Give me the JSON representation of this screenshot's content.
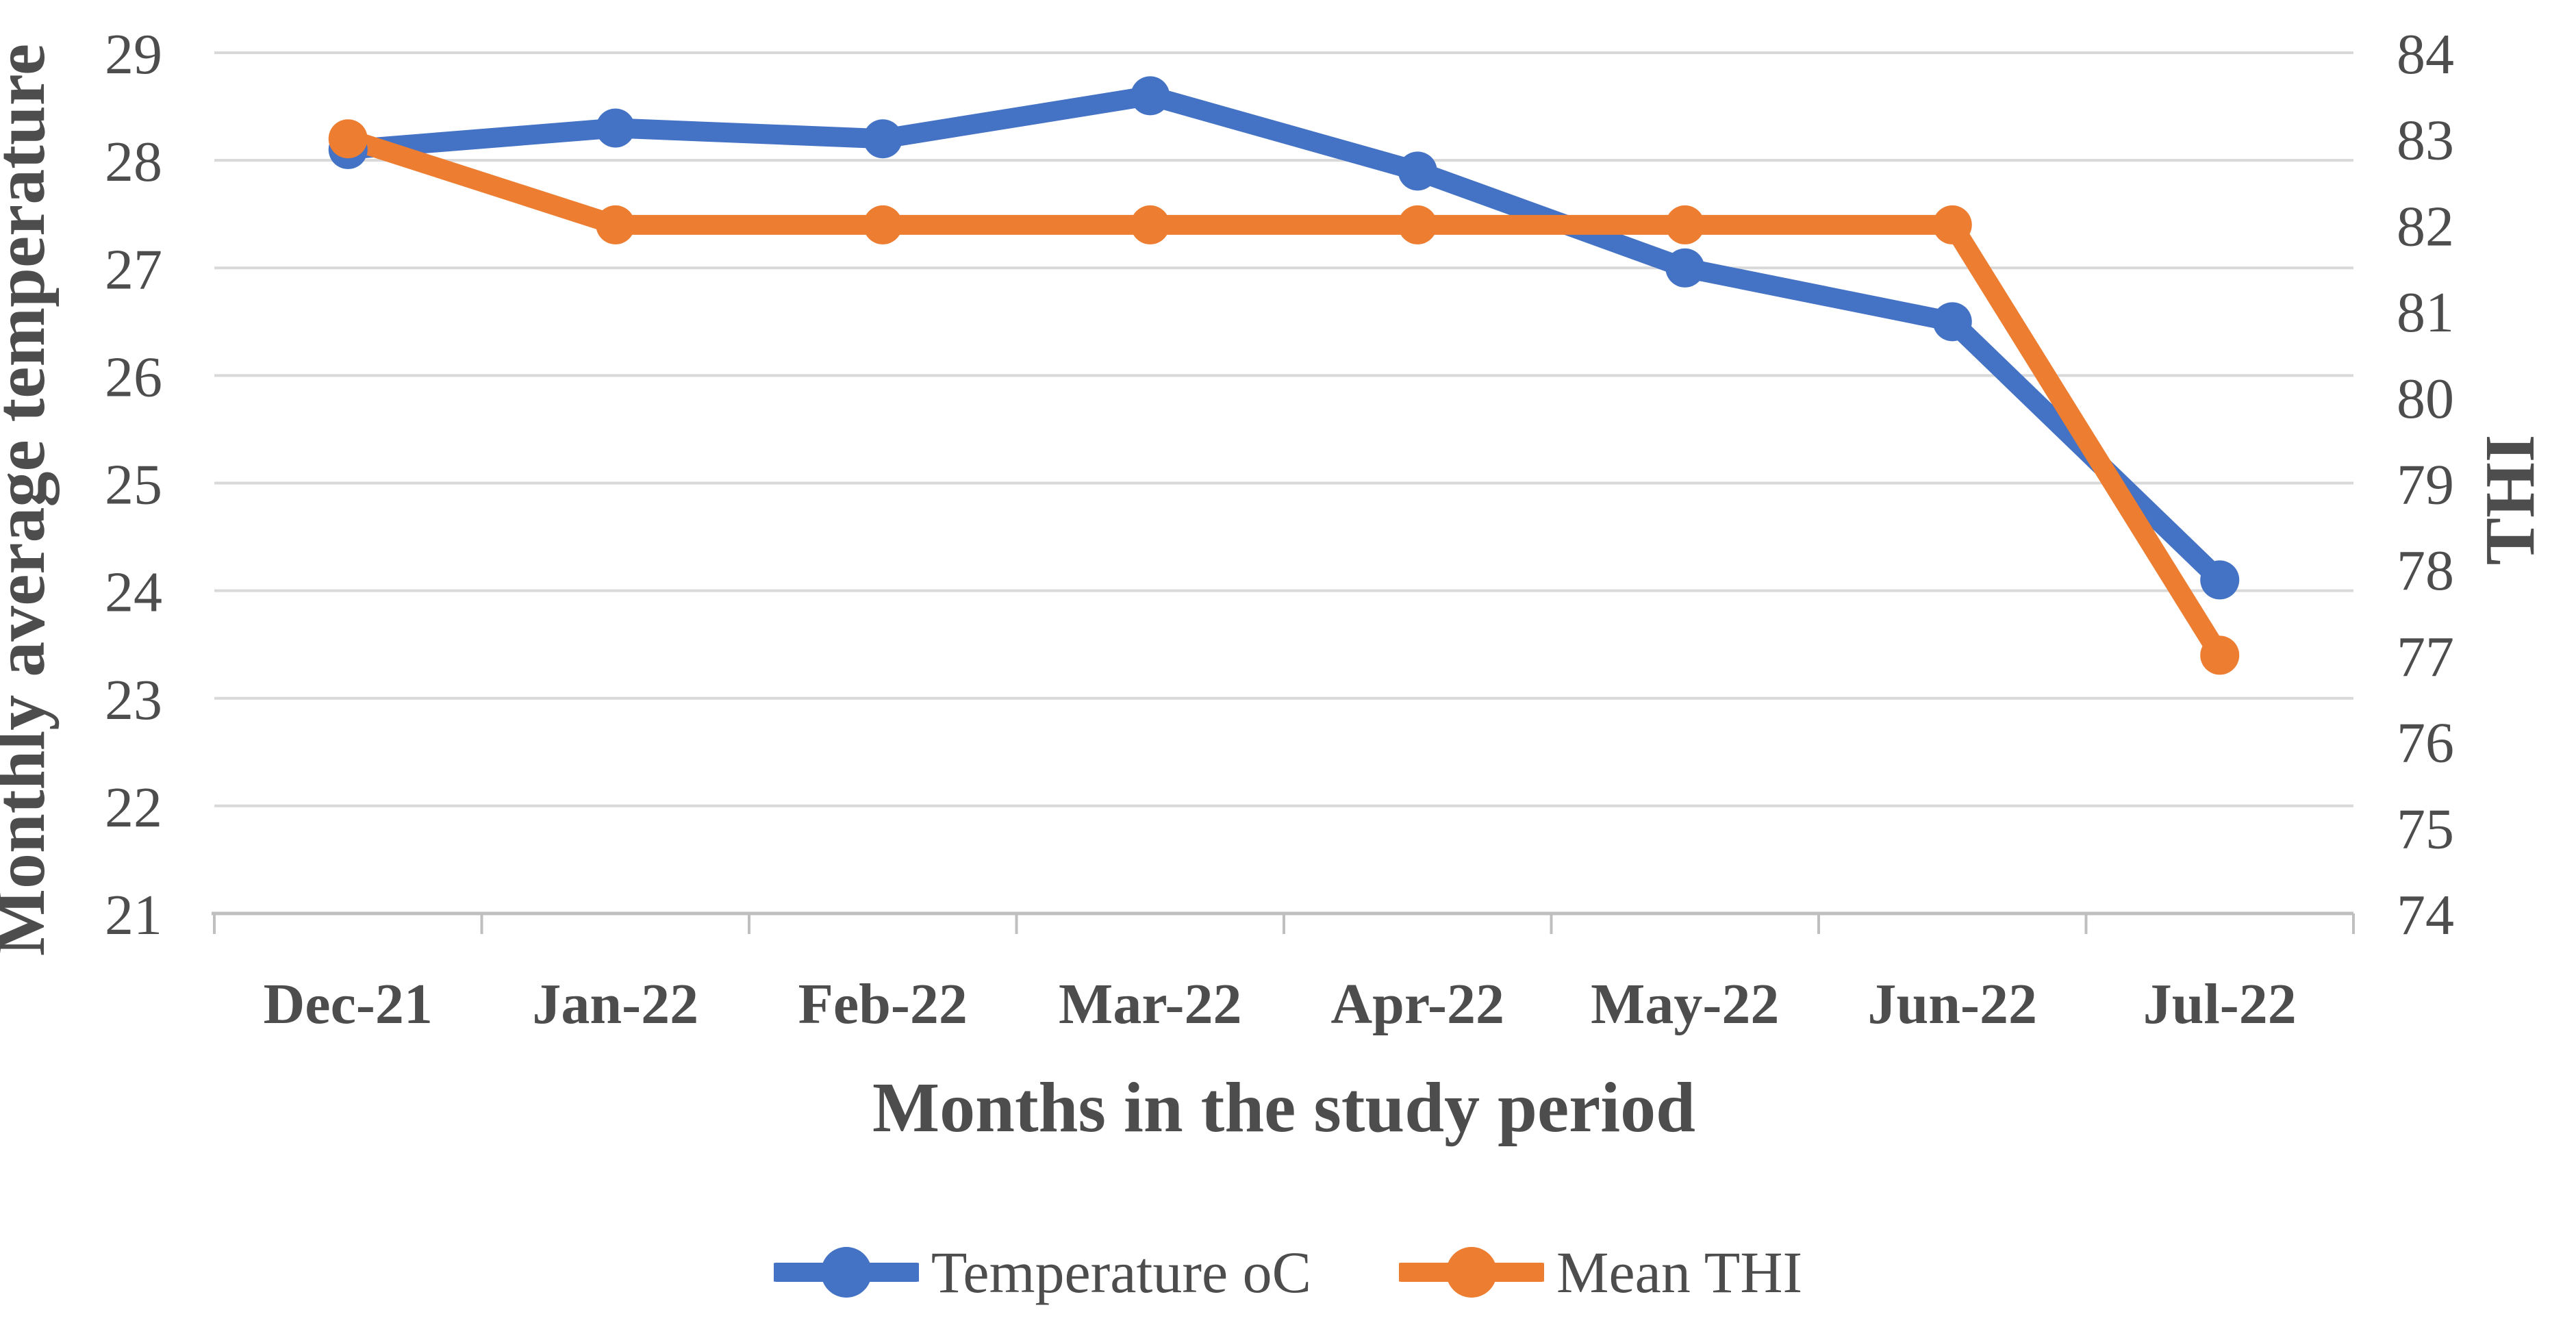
{
  "chart_data": {
    "type": "line",
    "categories": [
      "Dec-21",
      "Jan-22",
      "Feb-22",
      "Mar-22",
      "Apr-22",
      "May-22",
      "Jun-22",
      "Jul-22"
    ],
    "series": [
      {
        "name": "Temperature oC",
        "axis": "left",
        "color": "#4472C4",
        "marker": "circle",
        "values": [
          28.1,
          28.3,
          28.2,
          28.6,
          27.9,
          27.0,
          26.5,
          24.1
        ]
      },
      {
        "name": "Mean THI",
        "axis": "right",
        "color": "#ED7D31",
        "marker": "circle",
        "values": [
          83,
          82,
          82,
          82,
          82,
          82,
          82,
          77
        ]
      }
    ],
    "left_axis": {
      "title": "Monthly average temperature",
      "min": 21,
      "max": 29,
      "ticks": [
        29,
        28,
        27,
        26,
        25,
        24,
        23,
        22,
        21
      ]
    },
    "right_axis": {
      "title": "THI",
      "min": 74,
      "max": 84,
      "ticks": [
        84,
        83,
        82,
        81,
        80,
        79,
        78,
        77,
        76,
        75,
        74
      ]
    },
    "x_axis": {
      "title": "Months in the study period"
    },
    "legend": {
      "position": "bottom"
    },
    "grid": "horizontal",
    "colors": {
      "gridline": "#D9D9D9",
      "axis_line": "#BFBFBF",
      "text": "#4d4d4d",
      "background": "#ffffff"
    }
  }
}
